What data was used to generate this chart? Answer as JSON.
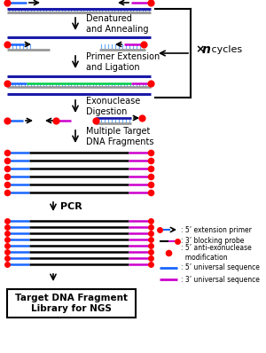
{
  "bg_color": "#ffffff",
  "final_box": "Target DNA Fragment\nLibrary for NGS",
  "cycles_text": "×n cycles",
  "step_labels": [
    "Denatured\nand Annealing",
    "Primer Extension\nand Ligation",
    "Exonuclease\nDigestion",
    "Multiple Target\nDNA Fragments",
    "PCR"
  ],
  "blue": "#1a66ff",
  "dark_blue": "#1a1aaa",
  "gray": "#999999",
  "green": "#00cc44",
  "magenta": "#cc00cc",
  "red": "#ff0000",
  "black": "#000000",
  "cyan_tick": "#66aaff"
}
